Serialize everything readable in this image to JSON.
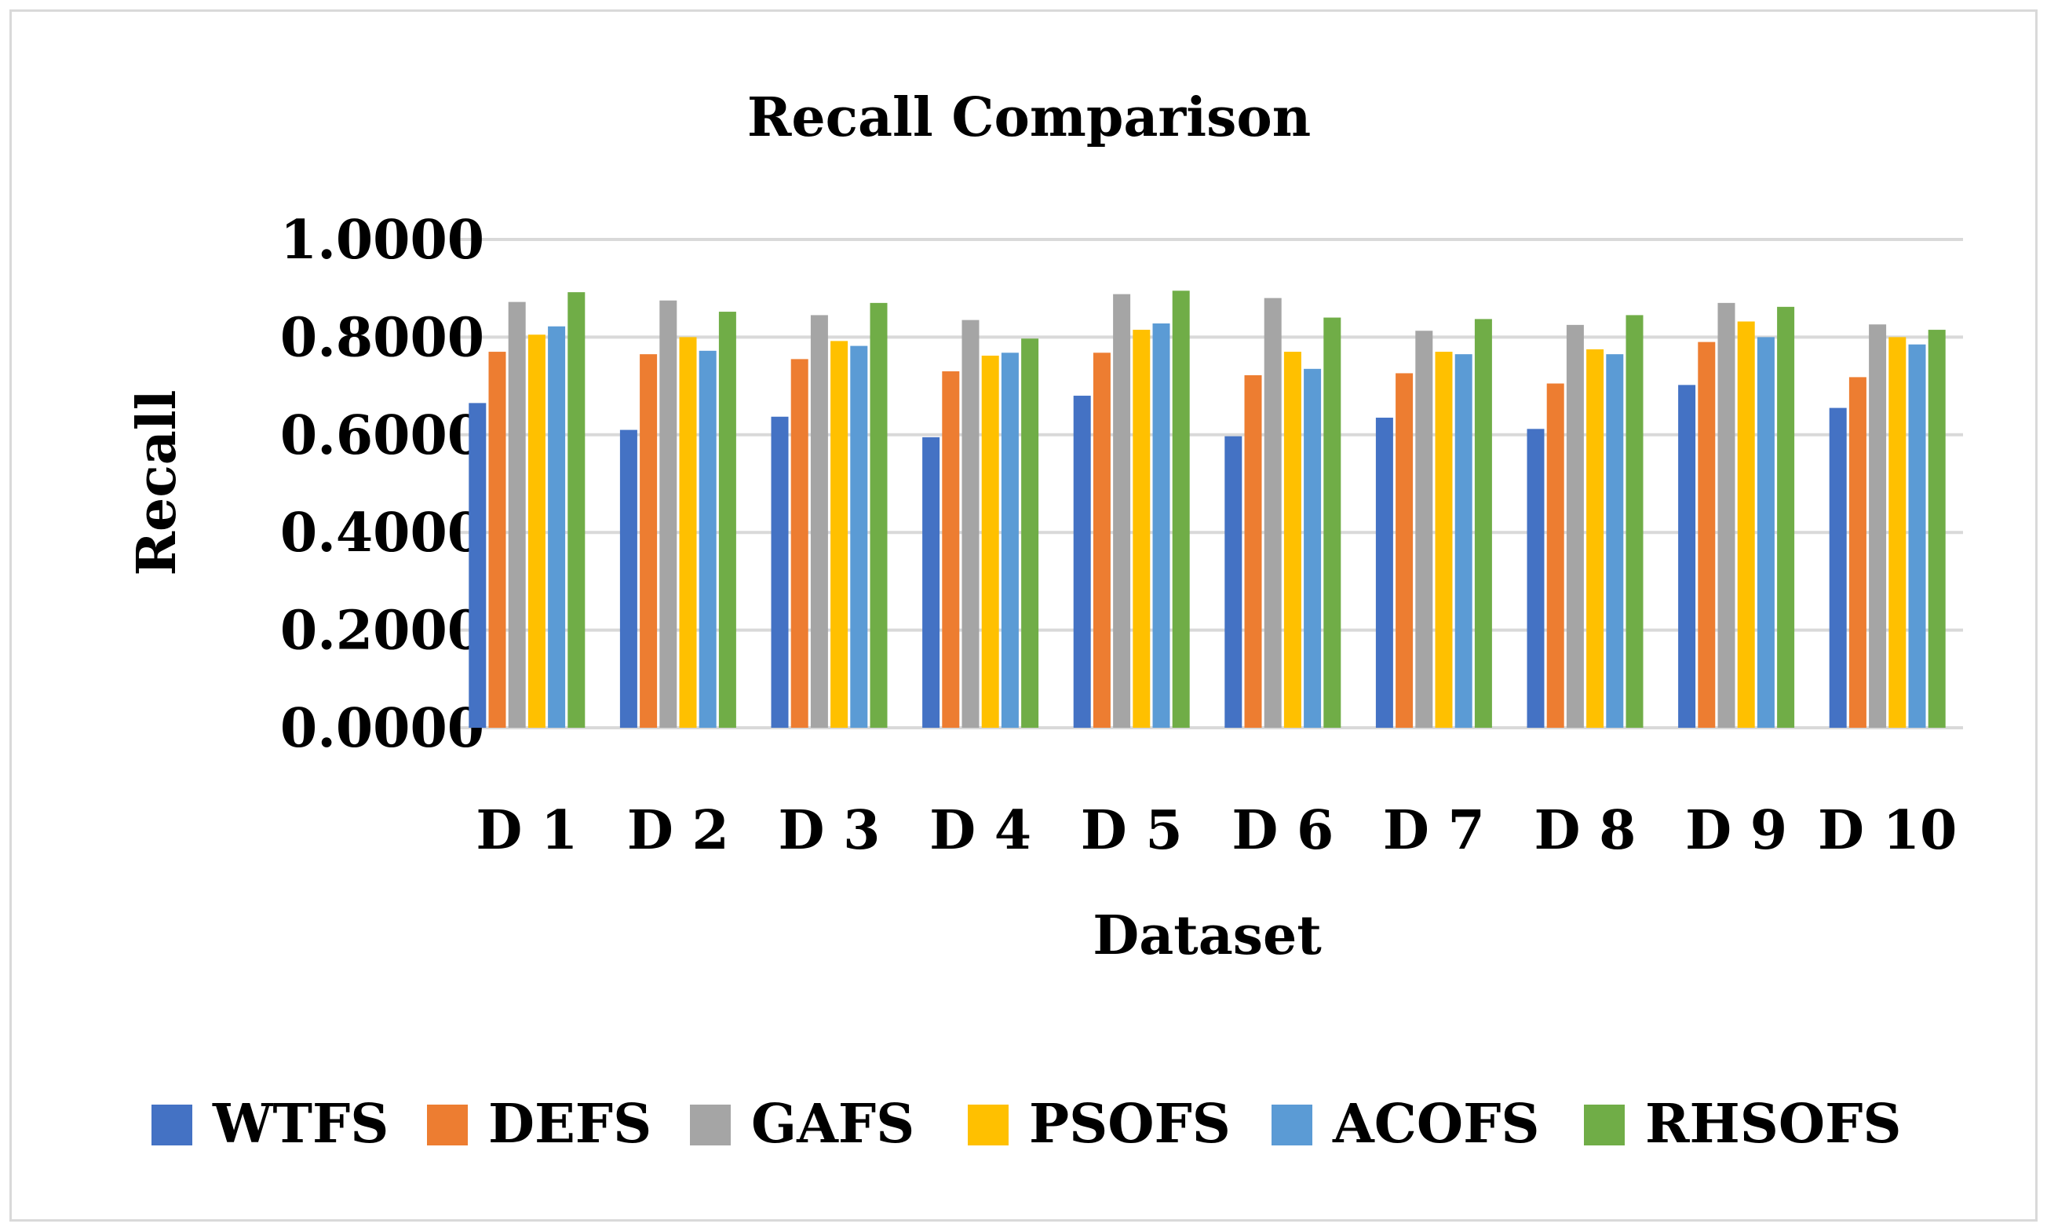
{
  "chart_data": {
    "type": "bar",
    "title": "Recall Comparison",
    "xlabel": "Dataset",
    "ylabel": "Recall",
    "ylim": [
      0,
      1
    ],
    "yticks": [
      "0.0000",
      "0.2000",
      "0.4000",
      "0.6000",
      "0.8000",
      "1.0000"
    ],
    "ytick_values": [
      0,
      0.2,
      0.4,
      0.6,
      0.8,
      1.0
    ],
    "grid": true,
    "legend_position": "bottom",
    "categories": [
      "D 1",
      "D 2",
      "D 3",
      "D 4",
      "D 5",
      "D 6",
      "D 7",
      "D 8",
      "D 9",
      "D 10"
    ],
    "series": [
      {
        "name": "WTFS",
        "color": "#4472c4",
        "values": [
          0.665,
          0.61,
          0.637,
          0.595,
          0.68,
          0.597,
          0.635,
          0.612,
          0.702,
          0.655
        ]
      },
      {
        "name": "DEFS",
        "color": "#ed7d31",
        "values": [
          0.77,
          0.765,
          0.755,
          0.73,
          0.768,
          0.722,
          0.726,
          0.705,
          0.79,
          0.718
        ]
      },
      {
        "name": "GAFS",
        "color": "#a5a5a5",
        "values": [
          0.872,
          0.875,
          0.845,
          0.835,
          0.888,
          0.88,
          0.813,
          0.825,
          0.87,
          0.826
        ]
      },
      {
        "name": "PSOFS",
        "color": "#ffc000",
        "values": [
          0.805,
          0.8,
          0.792,
          0.762,
          0.815,
          0.77,
          0.77,
          0.775,
          0.832,
          0.8
        ]
      },
      {
        "name": "ACOFS",
        "color": "#5b9bd5",
        "values": [
          0.822,
          0.772,
          0.782,
          0.768,
          0.828,
          0.735,
          0.765,
          0.765,
          0.8,
          0.785
        ]
      },
      {
        "name": "RHSOFS",
        "color": "#70ad47",
        "values": [
          0.892,
          0.852,
          0.87,
          0.797,
          0.895,
          0.84,
          0.837,
          0.845,
          0.862,
          0.815
        ]
      }
    ]
  }
}
